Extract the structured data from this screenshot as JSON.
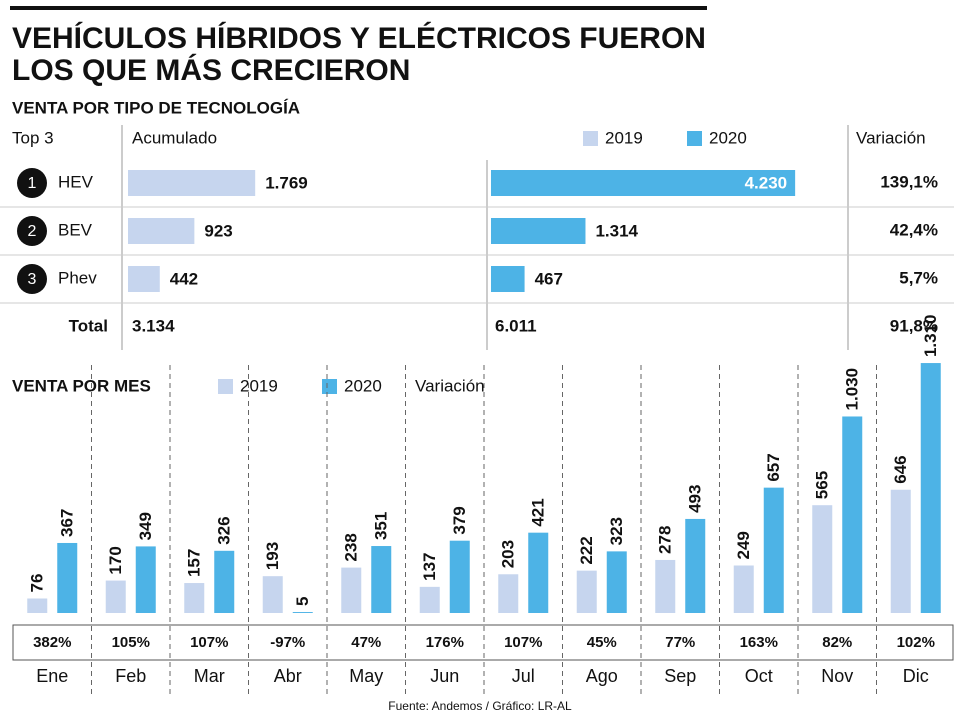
{
  "title": [
    "VEHÍCULOS HÍBRIDOS Y ELÉCTRICOS FUERON",
    "LOS QUE MÁS CRECIERON"
  ],
  "source": "Fuente: Andemos / Gráfico: LR-AL",
  "chart_data": [
    {
      "type": "hbar",
      "title": "VENTA POR TIPO DE TECNOLOGÍA",
      "headers": [
        "Top 3",
        "Acumulado"
      ],
      "ranks": [
        "1",
        "2",
        "3"
      ],
      "categories": [
        "HEV",
        "BEV",
        "Phev"
      ],
      "series": [
        {
          "name": "2019",
          "color": "#c6d5ee",
          "values": [
            1769,
            923,
            442
          ],
          "value_labels": [
            "1.769",
            "923",
            "442"
          ]
        },
        {
          "name": "2020",
          "color": "#4db3e6",
          "values": [
            4230,
            1314,
            467
          ],
          "value_labels": [
            "4.230",
            "1.314",
            "467"
          ]
        }
      ],
      "total": {
        "name": "Total",
        "values": [
          3134,
          6011
        ],
        "value_labels": [
          "3.134",
          "6.011"
        ]
      },
      "variation": {
        "name": "Variación",
        "values": [
          139.1,
          42.4,
          5.7
        ],
        "value_labels": [
          "139,1%",
          "42,4%",
          "5,7%"
        ],
        "total": 91.8,
        "total_label": "91,8%"
      }
    },
    {
      "type": "bar",
      "title": "VENTA POR MES",
      "categories": [
        "Ene",
        "Feb",
        "Mar",
        "Abr",
        "May",
        "Jun",
        "Jul",
        "Ago",
        "Sep",
        "Oct",
        "Nov",
        "Dic"
      ],
      "series": [
        {
          "name": "2019",
          "color": "#c6d5ee",
          "values": [
            76,
            170,
            157,
            193,
            238,
            137,
            203,
            222,
            278,
            249,
            565,
            646
          ]
        },
        {
          "name": "2020",
          "color": "#4db3e6",
          "values": [
            367,
            349,
            326,
            5,
            351,
            379,
            421,
            323,
            493,
            657,
            1030,
            1310
          ],
          "value_labels": [
            "367",
            "349",
            "326",
            "5",
            "351",
            "379",
            "421",
            "323",
            "493",
            "657",
            "1.030",
            "1.310"
          ]
        }
      ],
      "variation": {
        "name": "Variación",
        "values": [
          382,
          105,
          107,
          -97,
          47,
          176,
          107,
          45,
          77,
          163,
          82,
          102
        ],
        "value_labels": [
          "382%",
          "105%",
          "107%",
          "-97%",
          "47%",
          "176%",
          "107%",
          "45%",
          "77%",
          "163%",
          "82%",
          "102%"
        ]
      }
    }
  ]
}
